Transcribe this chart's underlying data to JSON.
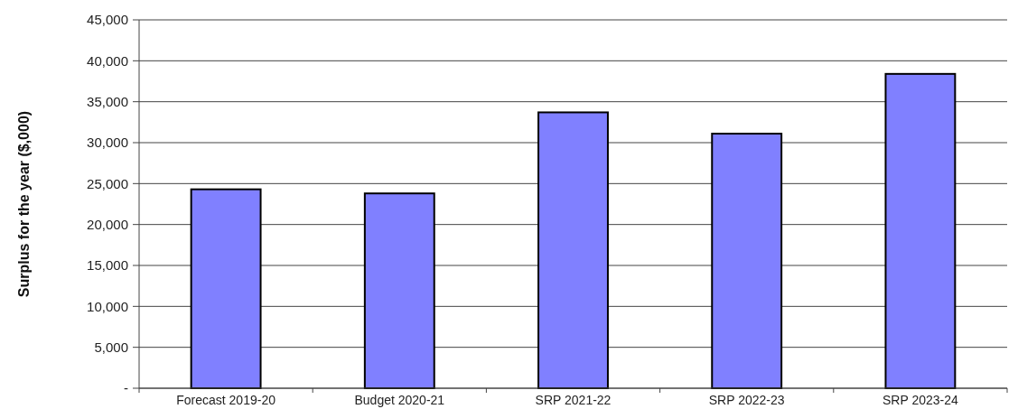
{
  "chart_data": {
    "type": "bar",
    "ylabel": "Surplus for the year ($,000)",
    "categories": [
      "Forecast 2019-20",
      "Budget 2020-21",
      "SRP 2021-22",
      "SRP 2022-23",
      "SRP 2023-24"
    ],
    "values": [
      24300,
      23800,
      33700,
      31100,
      38400
    ],
    "color": "#8080ff",
    "ylim": [
      0,
      45000
    ],
    "yticks": [
      {
        "value": 0,
        "label": "-"
      },
      {
        "value": 5000,
        "label": "5,000"
      },
      {
        "value": 10000,
        "label": "10,000"
      },
      {
        "value": 15000,
        "label": "15,000"
      },
      {
        "value": 20000,
        "label": "20,000"
      },
      {
        "value": 25000,
        "label": "25,000"
      },
      {
        "value": 30000,
        "label": "30,000"
      },
      {
        "value": 35000,
        "label": "35,000"
      },
      {
        "value": 40000,
        "label": "40,000"
      },
      {
        "value": 45000,
        "label": "45,000"
      }
    ],
    "grid": "y"
  }
}
